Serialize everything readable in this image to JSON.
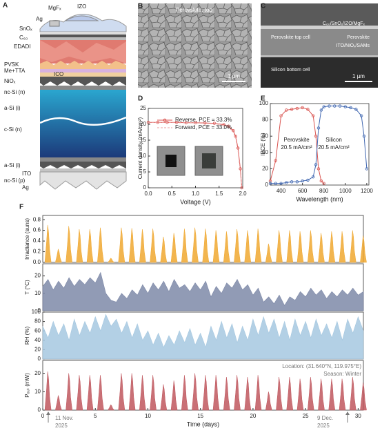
{
  "panel_labels": [
    "A",
    "B",
    "C",
    "D",
    "E",
    "F"
  ],
  "schematic": {
    "labels": [
      "MgFₓ",
      "Ag",
      "IZO",
      "SnOₓ",
      "C₆₀",
      "EDADI",
      "PVSK",
      "Me+TTA",
      "ICO",
      "NiOₓ",
      "nc-Si (n)",
      "a-Si (i)",
      "c-Si (n)",
      "a-Si (i)",
      "ITO",
      "nc-Si (p)",
      "Ag"
    ]
  },
  "sem_top": {
    "label": "Perovskite, top",
    "scale": "1 µm"
  },
  "sem_cross": {
    "labels": [
      "C₆₀/SnOₓ/IZO/MgFₓ",
      "Perovskite top cell",
      "Perovskite",
      "ITO/NiOₓ/SAMs",
      "Silicon bottom cell"
    ],
    "scale": "1 µm"
  },
  "chart_data": [
    {
      "type": "line",
      "xlabel": "Voltage (V)",
      "ylabel": "Current density (mA/cm²)",
      "x": [
        0,
        0.2,
        0.4,
        0.6,
        0.8,
        1.0,
        1.2,
        1.4,
        1.6,
        1.7,
        1.8,
        1.85,
        1.9,
        1.95,
        1.98
      ],
      "series": [
        {
          "name": "Reverse, PCE = 33.3%",
          "color": "#d9534f",
          "marker": "circle",
          "values": [
            20.6,
            20.6,
            20.6,
            20.6,
            20.5,
            20.5,
            20.4,
            20.3,
            19.9,
            19.4,
            18.0,
            16.2,
            12.5,
            6.0,
            0
          ]
        },
        {
          "name": "Forward, PCE = 33.0%",
          "color": "#eb9c9c",
          "style": "dashed",
          "values": [
            20.6,
            20.6,
            20.6,
            20.5,
            20.5,
            20.4,
            20.3,
            20.2,
            19.7,
            19.1,
            17.6,
            15.7,
            11.8,
            5.0,
            0.3
          ]
        }
      ],
      "xlim": [
        0,
        2.0
      ],
      "ylim": [
        0,
        25
      ],
      "xticks": [
        {
          "value": 0,
          "label": "0.0"
        },
        {
          "value": 0.5,
          "label": "0.5"
        },
        {
          "value": 1,
          "label": "1.0"
        },
        {
          "value": 1.5,
          "label": "1.5"
        },
        {
          "value": 2,
          "label": "2.0"
        }
      ],
      "yticks": [
        0,
        5,
        10,
        15,
        20,
        25
      ]
    },
    {
      "type": "line",
      "xlabel": "Wavelength (nm)",
      "ylabel": "IPCE (%)",
      "x": [
        300,
        350,
        400,
        450,
        500,
        550,
        600,
        650,
        700,
        725,
        750,
        775,
        800,
        850,
        900,
        950,
        1000,
        1050,
        1100,
        1150,
        1175,
        1200
      ],
      "series": [
        {
          "name": "Perovskite",
          "color": "#d9534f",
          "marker": "circle",
          "values": [
            5,
            30,
            85,
            92,
            93,
            94,
            95,
            93,
            85,
            60,
            20,
            5,
            2,
            null,
            null,
            null,
            null,
            null,
            null,
            null,
            null,
            null
          ]
        },
        {
          "name": "Silicon",
          "color": "#3f66b0",
          "marker": "circle",
          "values": [
            2,
            2,
            2,
            3,
            4,
            4,
            5,
            6,
            10,
            25,
            70,
            92,
            96,
            97,
            97,
            97,
            96,
            95,
            93,
            85,
            60,
            20
          ]
        }
      ],
      "annotations": [
        "20.5 mA/cm²",
        "20.5 mA/cm²"
      ],
      "xlim": [
        300,
        1220
      ],
      "ylim": [
        0,
        100
      ],
      "xticks": [
        400,
        600,
        800,
        1000,
        1200
      ],
      "yticks": [
        0,
        20,
        40,
        60,
        80,
        100
      ]
    },
    {
      "type": "spike",
      "ylabel": "Irradiance (suns)",
      "color": "#f0a830",
      "x": [
        0.5,
        1.5,
        2.5,
        3.5,
        4.5,
        5.5,
        6.5,
        7.5,
        8.5,
        9.5,
        10.5,
        11.5,
        12.5,
        13.5,
        14.5,
        15.5,
        16.5,
        17.5,
        18.5,
        19.5,
        20.5,
        21.5,
        22.5,
        23.5,
        24.5,
        25.5,
        26.5,
        27.5,
        28.5,
        29.5,
        30.5
      ],
      "values": [
        0.7,
        0.25,
        0.68,
        0.62,
        0.62,
        0.65,
        0.08,
        0.65,
        0.64,
        0.62,
        0.63,
        0.48,
        0.55,
        0.63,
        0.65,
        0.63,
        0.6,
        0.58,
        0.62,
        0.6,
        0.63,
        0.35,
        0.6,
        0.6,
        0.58,
        0.6,
        0.55,
        0.58,
        0.58,
        0.6,
        0.5
      ],
      "xlim": [
        0,
        30.5
      ],
      "ylim": [
        0,
        0.88
      ],
      "yticks": [
        {
          "value": 0,
          "label": "0.0"
        },
        {
          "value": 0.2,
          "label": "0.2"
        },
        {
          "value": 0.4,
          "label": "0.4"
        },
        {
          "value": 0.6,
          "label": "0.6"
        },
        {
          "value": 0.8,
          "label": "0.8"
        }
      ]
    },
    {
      "type": "area",
      "ylabel": "T (°C)",
      "color": "#7e89a8",
      "x": [
        0,
        0.5,
        1,
        1.5,
        2,
        2.5,
        3,
        3.5,
        4,
        4.5,
        5,
        5.5,
        6,
        6.5,
        7,
        7.5,
        8,
        8.5,
        9,
        9.5,
        10,
        10.5,
        11,
        11.5,
        12,
        12.5,
        13,
        13.5,
        14,
        14.5,
        15,
        15.5,
        16,
        16.5,
        17,
        17.5,
        18,
        18.5,
        19,
        19.5,
        20,
        20.5,
        21,
        21.5,
        22,
        22.5,
        23,
        23.5,
        24,
        24.5,
        25,
        25.5,
        26,
        26.5,
        27,
        27.5,
        28,
        28.5,
        29,
        29.5,
        30,
        30.5
      ],
      "values": [
        14,
        18,
        12,
        17,
        13,
        19,
        14,
        18,
        15,
        19,
        16,
        22,
        10,
        6,
        5,
        10,
        7,
        12,
        9,
        15,
        10,
        16,
        12,
        17,
        11,
        18,
        13,
        15,
        11,
        16,
        12,
        17,
        8,
        14,
        10,
        16,
        13,
        18,
        12,
        15,
        9,
        13,
        5,
        8,
        4,
        9,
        3,
        8,
        6,
        11,
        8,
        13,
        9,
        12,
        7,
        11,
        8,
        12,
        9,
        13,
        9,
        11
      ],
      "xlim": [
        0,
        30.5
      ],
      "ylim": [
        0,
        27
      ],
      "yticks": [
        0,
        10,
        20
      ]
    },
    {
      "type": "area",
      "ylabel": "RH (%)",
      "color": "#a6c8e0",
      "x": [
        0,
        0.5,
        1,
        1.5,
        2,
        2.5,
        3,
        3.5,
        4,
        4.5,
        5,
        5.5,
        6,
        6.5,
        7,
        7.5,
        8,
        8.5,
        9,
        9.5,
        10,
        10.5,
        11,
        11.5,
        12,
        12.5,
        13,
        13.5,
        14,
        14.5,
        15,
        15.5,
        16,
        16.5,
        17,
        17.5,
        18,
        18.5,
        19,
        19.5,
        20,
        20.5,
        21,
        21.5,
        22,
        22.5,
        23,
        23.5,
        24,
        24.5,
        25,
        25.5,
        26,
        26.5,
        27,
        27.5,
        28,
        28.5,
        29,
        29.5,
        30,
        30.5
      ],
      "values": [
        70,
        45,
        80,
        50,
        75,
        40,
        85,
        50,
        80,
        55,
        90,
        60,
        95,
        70,
        85,
        55,
        80,
        45,
        75,
        40,
        60,
        30,
        55,
        25,
        50,
        30,
        60,
        35,
        65,
        30,
        55,
        25,
        70,
        40,
        80,
        45,
        75,
        35,
        70,
        40,
        85,
        50,
        90,
        55,
        85,
        45,
        80,
        40,
        85,
        50,
        80,
        45,
        85,
        50,
        75,
        45,
        80,
        40,
        85,
        55,
        90,
        60
      ],
      "xlim": [
        0,
        30.5
      ],
      "ylim": [
        0,
        100
      ],
      "yticks": [
        0,
        20,
        40,
        60,
        80,
        100
      ]
    },
    {
      "type": "spike",
      "ylabel": "Pₒᵤₜ (mW)",
      "xlabel": "Time (days)",
      "color": "#c0575e",
      "x": [
        0.5,
        1.5,
        2.5,
        3.5,
        4.5,
        5.5,
        6.5,
        7.5,
        8.5,
        9.5,
        10.5,
        11.5,
        12.5,
        13.5,
        14.5,
        15.5,
        16.5,
        17.5,
        18.5,
        19.5,
        20.5,
        21.5,
        22.5,
        23.5,
        24.5,
        25.5,
        26.5,
        27.5,
        28.5,
        29.5,
        30.5
      ],
      "values": [
        21,
        8,
        20,
        19,
        19,
        19,
        3,
        20,
        20,
        19,
        19,
        14,
        16,
        19,
        20,
        19,
        19,
        18,
        19,
        18,
        19,
        10,
        18,
        18,
        17,
        18,
        17,
        17,
        17,
        18,
        15
      ],
      "xlim": [
        0,
        30.5
      ],
      "ylim": [
        0,
        27
      ],
      "xticks": [
        0,
        5,
        10,
        15,
        20,
        25,
        30
      ],
      "yticks": [
        0,
        10,
        20
      ],
      "location": "Location: (31.640°N, 119.975°E)",
      "season": "Season: Winter",
      "start_date": [
        "11 Nov.",
        "2025"
      ],
      "end_date": [
        "9 Dec.",
        "2025"
      ]
    }
  ]
}
